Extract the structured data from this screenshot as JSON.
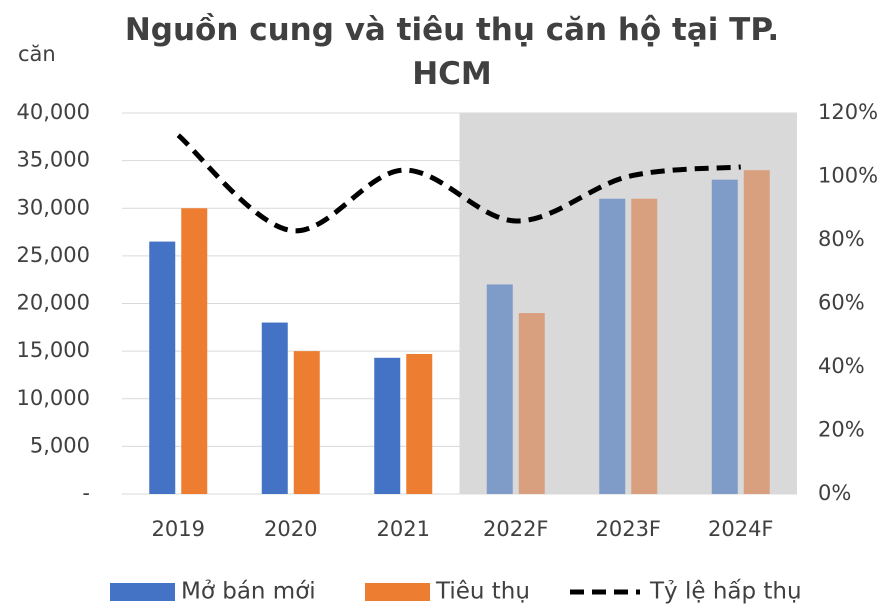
{
  "chart_data": {
    "type": "bar",
    "title": "Nguồn cung và tiêu thụ căn hộ tại TP. HCM",
    "y_label": "căn",
    "categories": [
      "2019",
      "2020",
      "2021",
      "2022F",
      "2023F",
      "2024F"
    ],
    "highlight": {
      "from": "2022F",
      "to": "2024F",
      "color": "#d9d9d9"
    },
    "series": [
      {
        "name": "Mở bán mới",
        "type": "bar",
        "color": "#4472c4",
        "colors": [
          "#4472c4",
          "#4472c4",
          "#4472c4",
          "#7f9bc7",
          "#7f9bc7",
          "#7f9bc7"
        ],
        "values": [
          26500,
          18000,
          14300,
          22000,
          31000,
          33000
        ]
      },
      {
        "name": "Tiêu thụ",
        "type": "bar",
        "color": "#ed7d31",
        "colors": [
          "#ed7d31",
          "#ed7d31",
          "#ed7d31",
          "#d9a07f",
          "#d9a07f",
          "#d9a07f"
        ],
        "values": [
          30000,
          15000,
          14700,
          19000,
          31000,
          34000
        ]
      },
      {
        "name": "Tỷ lệ hấp thụ",
        "type": "line",
        "axis": "y2",
        "color": "#000000",
        "dashed": true,
        "values": [
          113,
          83,
          102,
          86,
          100,
          103
        ]
      }
    ],
    "ylim": [
      0,
      40000
    ],
    "yticks": [
      {
        "value": 0,
        "label": "-"
      },
      {
        "value": 5000,
        "label": "5,000"
      },
      {
        "value": 10000,
        "label": "10,000"
      },
      {
        "value": 15000,
        "label": "15,000"
      },
      {
        "value": 20000,
        "label": "20,000"
      },
      {
        "value": 25000,
        "label": "25,000"
      },
      {
        "value": 30000,
        "label": "30,000"
      },
      {
        "value": 35000,
        "label": "35,000"
      },
      {
        "value": 40000,
        "label": "40,000"
      }
    ],
    "y2lim": [
      0,
      120
    ],
    "y2ticks": [
      {
        "value": 0,
        "label": "0%"
      },
      {
        "value": 20,
        "label": "20%"
      },
      {
        "value": 40,
        "label": "40%"
      },
      {
        "value": 60,
        "label": "60%"
      },
      {
        "value": 80,
        "label": "80%"
      },
      {
        "value": 100,
        "label": "100%"
      },
      {
        "value": 120,
        "label": "120%"
      }
    ],
    "grid": true,
    "legend": "bottom"
  }
}
